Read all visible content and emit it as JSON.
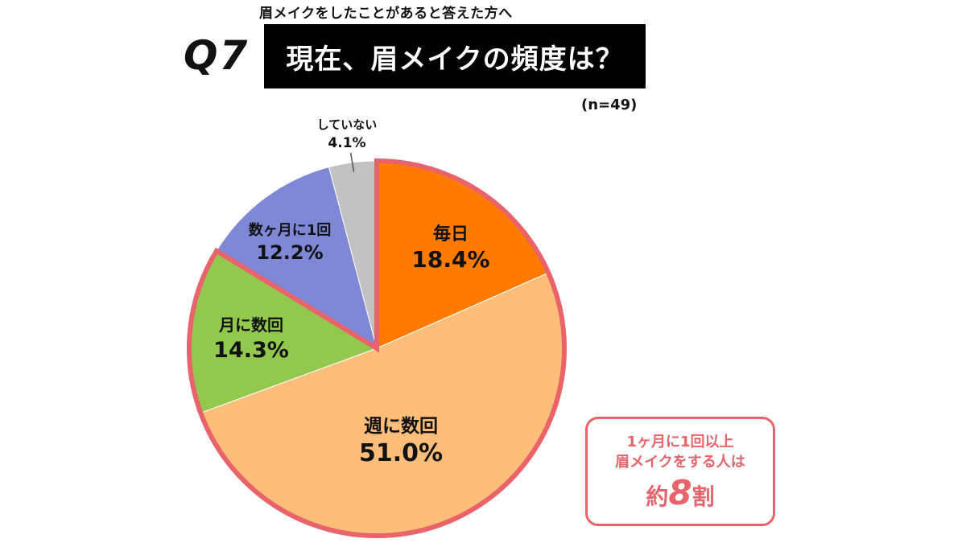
{
  "header": {
    "subtitle": "眉メイクをしたことがあると答えた方へ",
    "question_number": "Q7",
    "title": "現在、眉メイクの頻度は？",
    "sample_size": "(n=49)"
  },
  "chart_data": {
    "type": "pie",
    "categories": [
      "毎日",
      "週に数回",
      "月に数回",
      "数ヶ月に1回",
      "していない"
    ],
    "values": [
      18.4,
      51.0,
      14.3,
      12.2,
      4.1
    ],
    "value_labels": [
      "18.4%",
      "51.0%",
      "14.3%",
      "12.2%",
      "4.1%"
    ],
    "colors": [
      "#ff7b00",
      "#ffbd7a",
      "#92c84e",
      "#7f88d6",
      "#c2c2c2"
    ],
    "highlight_color": "#e8636a",
    "highlighted_categories": [
      "毎日",
      "週に数回",
      "月に数回"
    ],
    "start": "12 o'clock",
    "direction": "clockwise"
  },
  "callout": {
    "line1": "1ヶ月に1回以上",
    "line2": "眉メイクをする人は",
    "prefix": "約",
    "number": "8",
    "suffix": "割",
    "color": "#e8636a"
  }
}
